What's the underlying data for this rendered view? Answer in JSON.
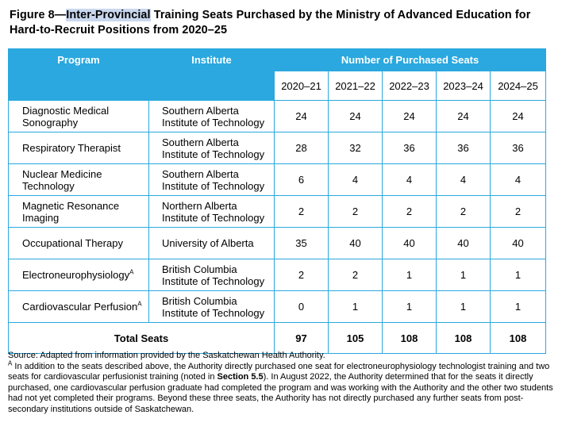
{
  "title": {
    "prefix": "Figure 8—",
    "highlight": "Inter-Provincial",
    "rest": " Training Seats Purchased by the Ministry of Advanced Education for Hard-to-Recruit Positions from 2020–25"
  },
  "table": {
    "headers": {
      "program": "Program",
      "institute": "Institute",
      "seats": "Number of Purchased Seats"
    },
    "years": [
      "2020–21",
      "2021–22",
      "2022–23",
      "2023–24",
      "2024–25"
    ],
    "rows": [
      {
        "program": "Diagnostic Medical Sonography",
        "program_sup": "",
        "institute": "Southern Alberta Institute of Technology",
        "values": [
          "24",
          "24",
          "24",
          "24",
          "24"
        ]
      },
      {
        "program": "Respiratory Therapist",
        "program_sup": "",
        "institute": "Southern Alberta Institute of Technology",
        "values": [
          "28",
          "32",
          "36",
          "36",
          "36"
        ]
      },
      {
        "program": "Nuclear Medicine Technology",
        "program_sup": "",
        "institute": "Southern Alberta Institute of Technology",
        "values": [
          "6",
          "4",
          "4",
          "4",
          "4"
        ]
      },
      {
        "program": "Magnetic Resonance Imaging",
        "program_sup": "",
        "institute": "Northern Alberta Institute of Technology",
        "values": [
          "2",
          "2",
          "2",
          "2",
          "2"
        ]
      },
      {
        "program": "Occupational Therapy",
        "program_sup": "",
        "institute": "University of Alberta",
        "values": [
          "35",
          "40",
          "40",
          "40",
          "40"
        ]
      },
      {
        "program": "Electroneurophysiology",
        "program_sup": "A",
        "institute": "British Columbia Institute of Technology",
        "values": [
          "2",
          "2",
          "1",
          "1",
          "1"
        ]
      },
      {
        "program": "Cardiovascular Perfusion",
        "program_sup": "A",
        "institute": "British Columbia Institute of Technology",
        "values": [
          "0",
          "1",
          "1",
          "1",
          "1"
        ]
      }
    ],
    "total": {
      "label": "Total Seats",
      "values": [
        "97",
        "105",
        "108",
        "108",
        "108"
      ]
    }
  },
  "notes": {
    "source": "Source: Adapted from information provided by the Saskatchewan Health Authority.",
    "footnote_marker": "A",
    "footnote_part1": " In addition to the seats described above, the Authority directly purchased one seat for electroneurophysiology technologist training and two seats for cardiovascular perfusionist training (noted in ",
    "footnote_bold": "Section 5.5",
    "footnote_part2": "). In August 2022, the Authority determined that for the seats it directly purchased, one cardiovascular perfusion graduate had completed the program and was working with the Authority and the other two students had not yet completed their programs. Beyond these three seats, the Authority has not directly purchased any further seats from post-secondary institutions outside of Saskatchewan."
  },
  "colors": {
    "header_bg": "#2aa8df",
    "header_text": "#ffffff",
    "border": "#2aa8df",
    "highlight": "#c9d8ee"
  }
}
